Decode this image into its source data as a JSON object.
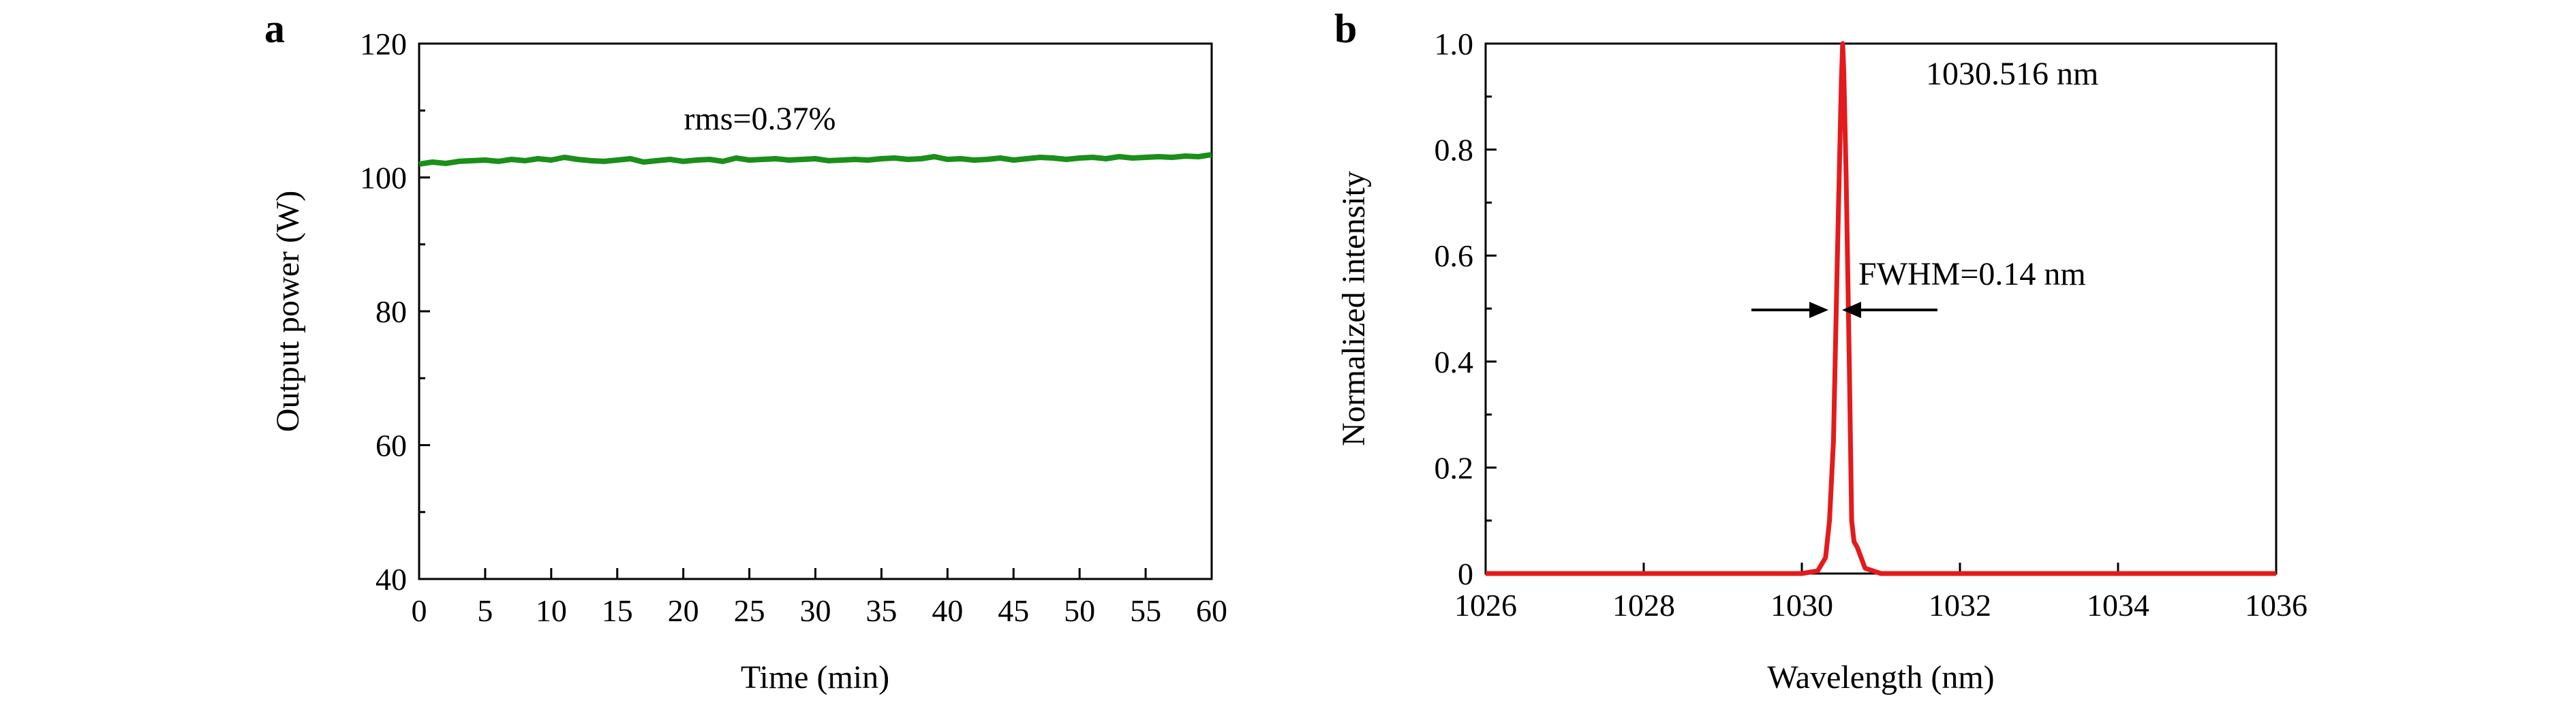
{
  "panels": {
    "a": {
      "label": "a"
    },
    "b": {
      "label": "b"
    }
  },
  "colors": {
    "series_a": "#1a8f1a",
    "series_b": "#e41a1c",
    "annotation_a": "#e41a1c"
  },
  "chart_data": [
    {
      "type": "line",
      "xlabel": "Time (min)",
      "ylabel": "Output power (W)",
      "xlim": [
        0,
        60
      ],
      "ylim": [
        40,
        120
      ],
      "xticks": [
        "0",
        "5",
        "10",
        "15",
        "20",
        "25",
        "30",
        "35",
        "40",
        "45",
        "50",
        "55",
        "60"
      ],
      "yticks": [
        "40",
        "60",
        "80",
        "100",
        "120"
      ],
      "annotation": "rms=0.37%",
      "series": [
        {
          "x": [
            0,
            1,
            2,
            3,
            4,
            5,
            6,
            7,
            8,
            9,
            10,
            11,
            12,
            13,
            14,
            15,
            16,
            17,
            18,
            19,
            20,
            21,
            22,
            23,
            24,
            25,
            26,
            27,
            28,
            29,
            30,
            31,
            32,
            33,
            34,
            35,
            36,
            37,
            38,
            39,
            40,
            41,
            42,
            43,
            44,
            45,
            46,
            47,
            48,
            49,
            50,
            51,
            52,
            53,
            54,
            55,
            56,
            57,
            58,
            59,
            60
          ],
          "y": [
            102.0,
            102.3,
            102.1,
            102.4,
            102.5,
            102.6,
            102.4,
            102.7,
            102.5,
            102.8,
            102.6,
            103.0,
            102.7,
            102.5,
            102.4,
            102.6,
            102.8,
            102.3,
            102.5,
            102.7,
            102.4,
            102.6,
            102.7,
            102.4,
            102.9,
            102.6,
            102.7,
            102.8,
            102.6,
            102.7,
            102.8,
            102.5,
            102.6,
            102.7,
            102.6,
            102.8,
            102.9,
            102.7,
            102.8,
            103.1,
            102.7,
            102.8,
            102.6,
            102.7,
            102.9,
            102.6,
            102.8,
            103.0,
            102.9,
            102.7,
            102.9,
            103.0,
            102.8,
            103.1,
            102.9,
            103.0,
            103.1,
            103.0,
            103.2,
            103.1,
            103.4
          ]
        }
      ]
    },
    {
      "type": "line",
      "xlabel": "Wavelength (nm)",
      "ylabel": "Normalized intensity",
      "xlim": [
        1026,
        1036
      ],
      "ylim": [
        0,
        1.0
      ],
      "xticks": [
        "1026",
        "1028",
        "1030",
        "1032",
        "1034",
        "1036"
      ],
      "yticks": [
        "0",
        "0.2",
        "0.4",
        "0.6",
        "0.8",
        "1.0"
      ],
      "annotations": {
        "peak": "1030.516 nm",
        "fwhm": "FWHM=0.14 nm"
      },
      "series": [
        {
          "x": [
            1026,
            1029.5,
            1030.0,
            1030.2,
            1030.3,
            1030.35,
            1030.4,
            1030.45,
            1030.5,
            1030.516,
            1030.53,
            1030.56,
            1030.6,
            1030.63,
            1030.66,
            1030.7,
            1030.8,
            1031.0,
            1032,
            1036
          ],
          "y": [
            0.0,
            0.0,
            0.0,
            0.005,
            0.03,
            0.1,
            0.25,
            0.6,
            0.93,
            1.0,
            0.95,
            0.75,
            0.4,
            0.1,
            0.06,
            0.05,
            0.01,
            0.0,
            0.0,
            0.0
          ]
        }
      ]
    }
  ]
}
